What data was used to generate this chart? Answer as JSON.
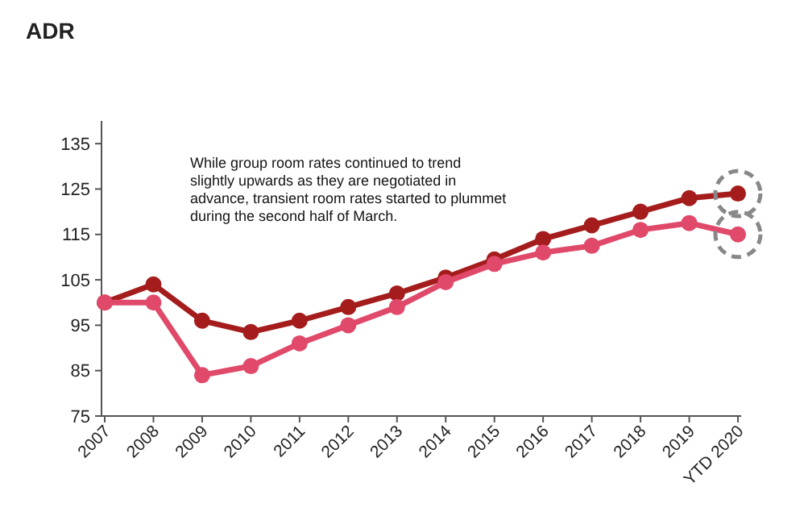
{
  "chart_data": {
    "type": "line",
    "title": "ADR",
    "categories": [
      "2007",
      "2008",
      "2009",
      "2010",
      "2011",
      "2012",
      "2013",
      "2014",
      "2015",
      "2016",
      "2017",
      "2018",
      "2019",
      "YTD 2020"
    ],
    "series": [
      {
        "color": "#a51c1c",
        "values": [
          100,
          104,
          96,
          93.5,
          96,
          99,
          102,
          105.5,
          109.5,
          114,
          117,
          120,
          123,
          124
        ]
      },
      {
        "color": "#e0496a",
        "values": [
          100,
          100,
          84,
          86,
          91,
          95,
          99,
          104.5,
          108.5,
          111,
          112.5,
          116,
          117.5,
          115
        ]
      }
    ],
    "ylim": [
      75,
      140
    ],
    "yticks": [
      75,
      85,
      95,
      105,
      115,
      125,
      135
    ],
    "grid": false,
    "marker": "circle",
    "line_style": "solid",
    "annotations": [
      "While group room rates continued to trend slightly upwards as they are negotiated in advance, transient room rates started to plummet during the second half of March."
    ]
  }
}
